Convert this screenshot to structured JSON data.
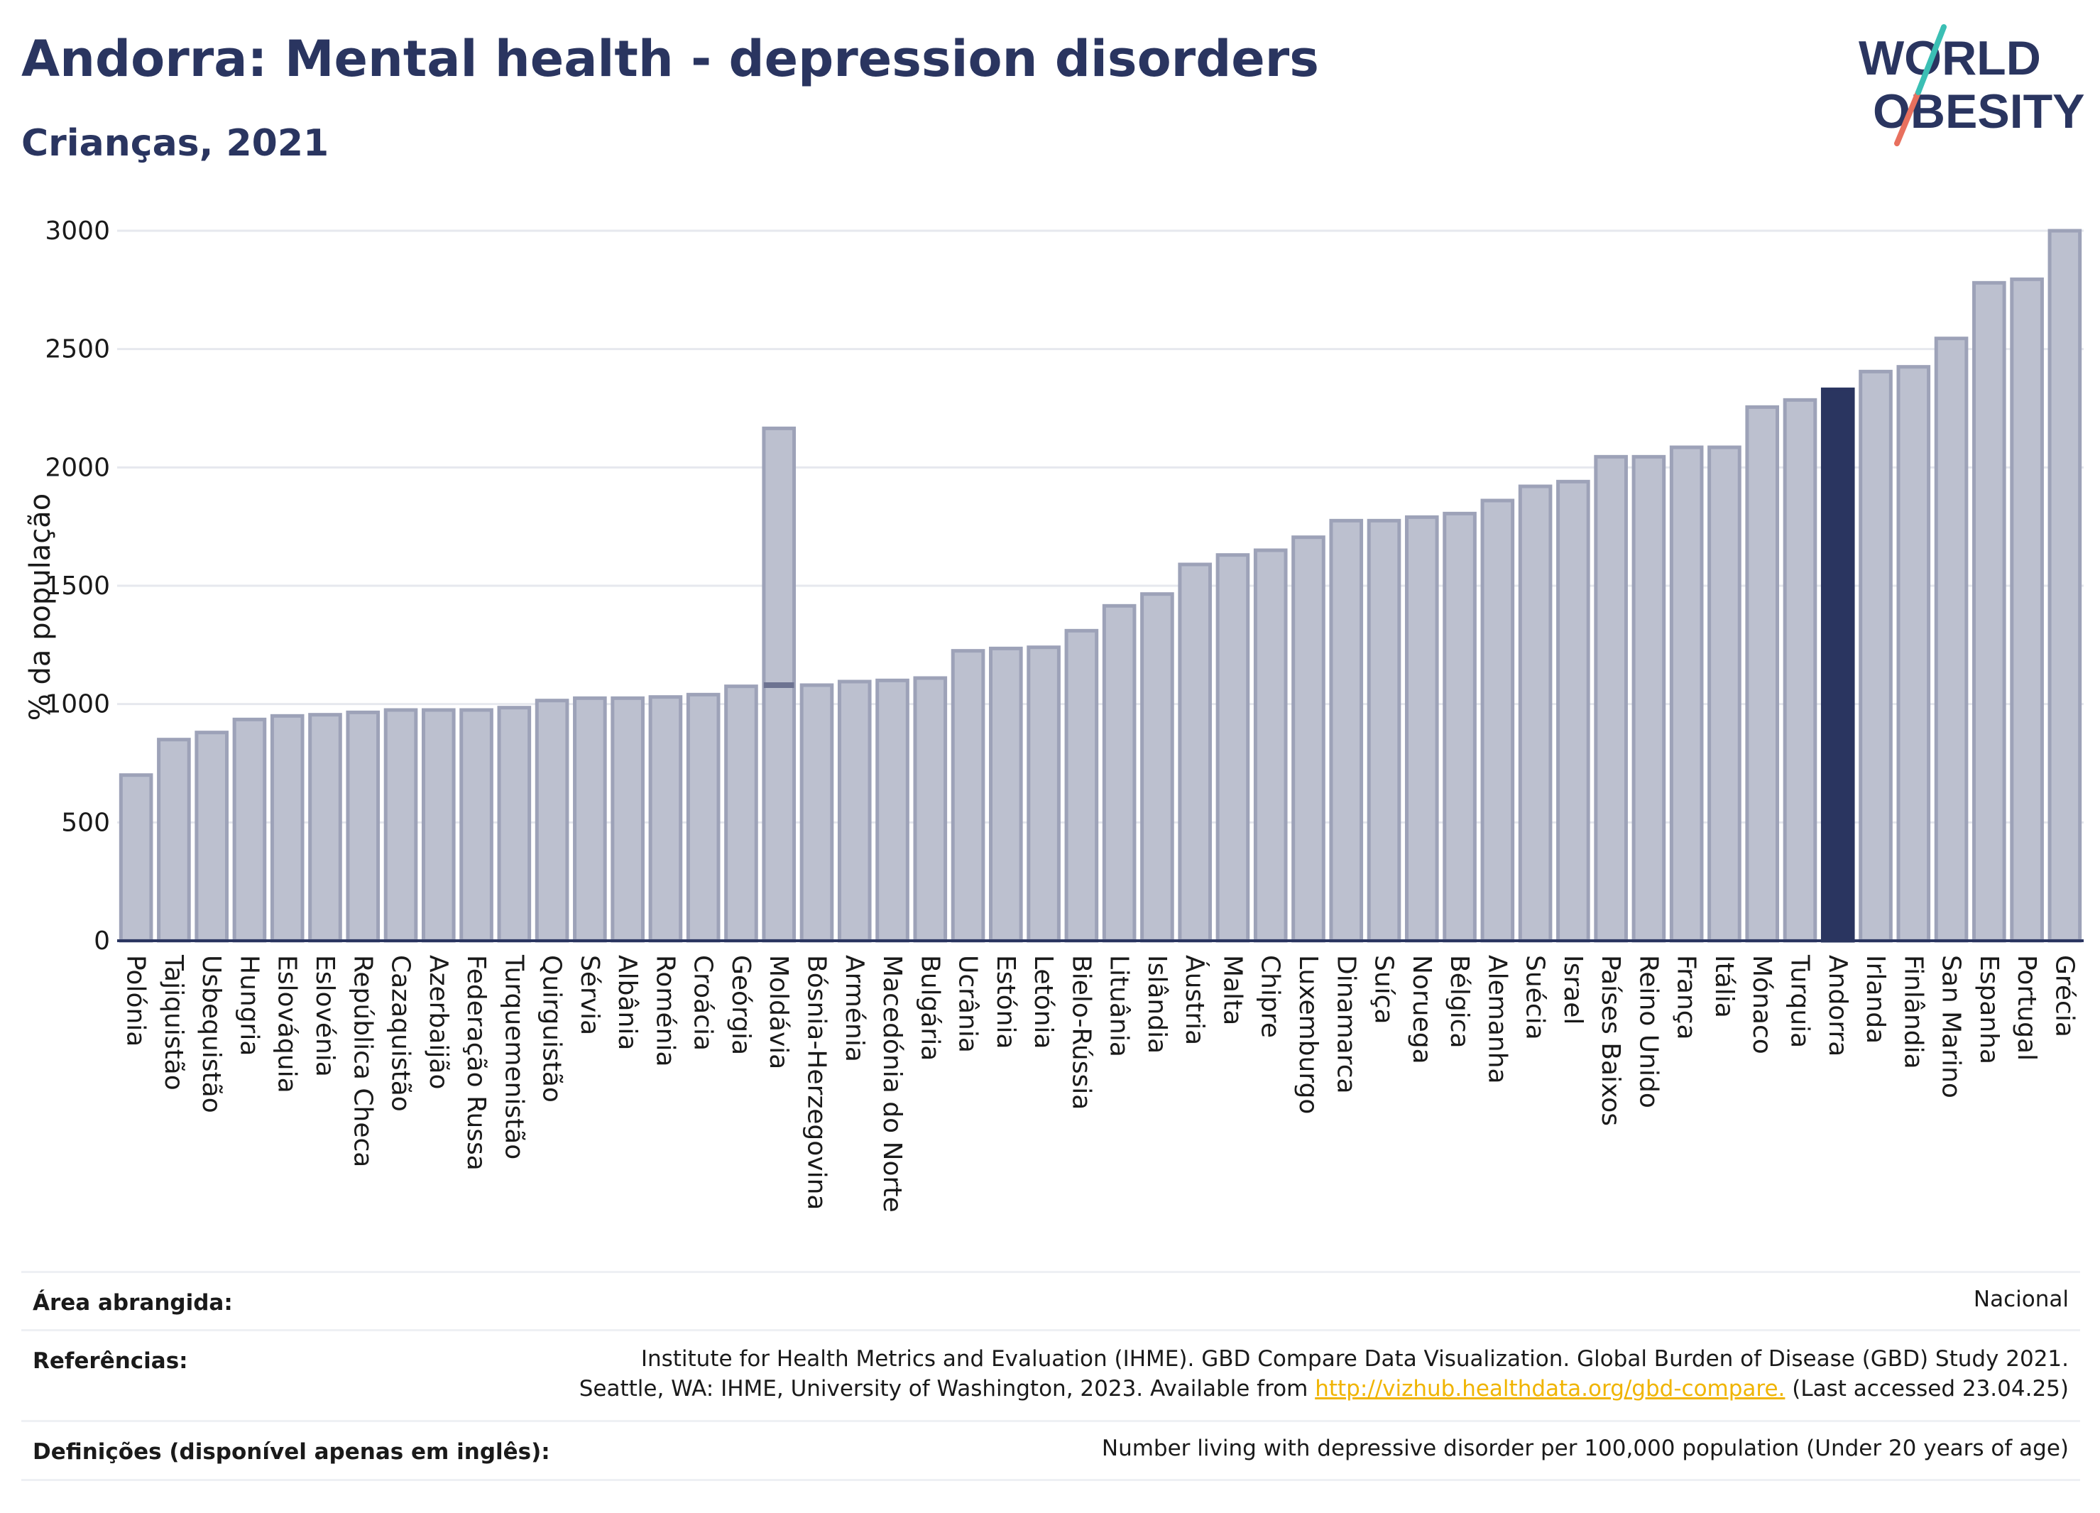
{
  "header": {
    "title": "Andorra: Mental health - depression disorders",
    "subtitle": "Crianças, 2021"
  },
  "logo": {
    "line1": "WORLD",
    "line2": "OBESITY",
    "colors": {
      "text": "#2a3560",
      "slash_teal": "#3bbfb4",
      "slash_red": "#e8705e"
    }
  },
  "colors": {
    "bar_default": "#bcc0cf",
    "bar_border": "#9da2b8",
    "bar_highlight": "#2a3560",
    "grid": "#e6e8ee",
    "axis": "#2a3560"
  },
  "chart_data": {
    "type": "bar",
    "ylabel": "% da população",
    "ylim": [
      0,
      3000
    ],
    "yticks": [
      0,
      500,
      1000,
      1500,
      2000,
      2500,
      3000
    ],
    "grid": true,
    "highlight": "Andorra",
    "categories": [
      "Polónia",
      "Tajiquistão",
      "Usbequistão",
      "Hungria",
      "Eslováquia",
      "Eslovénia",
      "República Checa",
      "Cazaquistão",
      "Azerbaijão",
      "Federação Russa",
      "Turquemenistão",
      "Quirguistão",
      "Sérvia",
      "Albânia",
      "Roménia",
      "Croácia",
      "Geórgia",
      "Moldávia",
      "Bósnia-Herzegovina",
      "Arménia",
      "Macedónia do Norte",
      "Bulgária",
      "Ucrânia",
      "Estónia",
      "Letónia",
      "Bielo-Rússia",
      "Lituânia",
      "Islândia",
      "Áustria",
      "Malta",
      "Chipre",
      "Luxemburgo",
      "Dinamarca",
      "Suíça",
      "Noruega",
      "Bélgica",
      "Alemanha",
      "Suécia",
      "Israel",
      "Países Baixos",
      "Reino Unido",
      "França",
      "Itália",
      "Mónaco",
      "Turquia",
      "Andorra",
      "Irlanda",
      "Finlândia",
      "San Marino",
      "Espanha",
      "Portugal",
      "Grécia"
    ],
    "values": [
      700,
      850,
      880,
      935,
      950,
      955,
      965,
      975,
      975,
      975,
      985,
      1015,
      1025,
      1025,
      1030,
      1040,
      1075,
      2165,
      1080,
      1095,
      1100,
      1110,
      1225,
      1235,
      1240,
      1310,
      1415,
      1465,
      1590,
      1630,
      1650,
      1705,
      1775,
      1775,
      1790,
      1805,
      1860,
      1920,
      1940,
      2045,
      2045,
      2085,
      2085,
      2255,
      2285,
      2330,
      2405,
      2425,
      2545,
      2780,
      2795,
      3000
    ],
    "secondary_marks": [
      {
        "category": "Moldávia",
        "value": 1080
      }
    ]
  },
  "footer": {
    "area_label": "Área abrangida:",
    "area_value": "Nacional",
    "refs_label": "Referências:",
    "refs_line1": "Institute for Health Metrics and Evaluation (IHME). GBD Compare Data Visualization. Global Burden of Disease (GBD) Study 2021.",
    "refs_line2_pre": "Seattle, WA: IHME, University of Washington, 2023. Available from ",
    "refs_link": "http://vizhub.healthdata.org/gbd-compare.",
    "refs_line2_post": " (Last accessed 23.04.25)",
    "defs_label": "Definições (disponível apenas em inglês):",
    "defs_value": "Number living with depressive disorder per 100,000 population (Under 20 years of age)"
  }
}
